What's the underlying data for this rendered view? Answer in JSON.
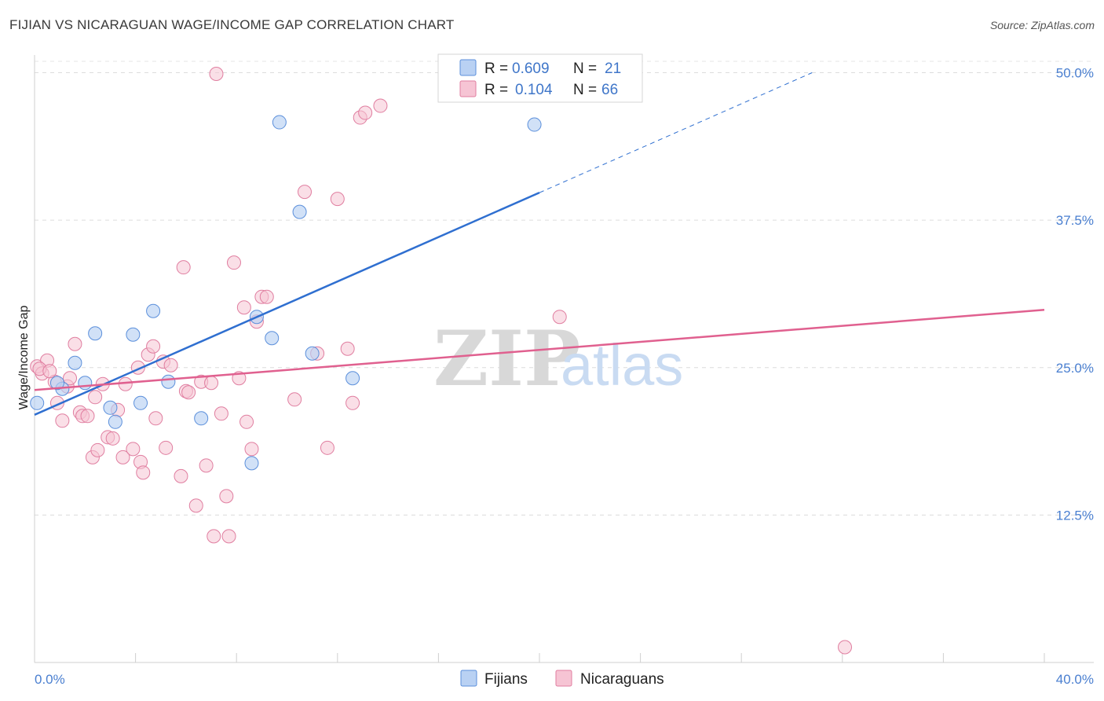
{
  "header": {
    "title": "FIJIAN VS NICARAGUAN WAGE/INCOME GAP CORRELATION CHART",
    "source": "Source: ZipAtlas.com"
  },
  "watermark": {
    "zip": "ZIP",
    "atlas": "atlas"
  },
  "chart_data": {
    "type": "scatter",
    "title": "FIJIAN VS NICARAGUAN WAGE/INCOME GAP CORRELATION CHART",
    "xlabel": "",
    "ylabel": "Wage/Income Gap",
    "xlim": [
      0,
      40
    ],
    "ylim": [
      0,
      51.5
    ],
    "x_tick_labels": {
      "min": "0.0%",
      "max": "40.0%"
    },
    "y_ticks": [
      12.5,
      25.0,
      37.5,
      50.0
    ],
    "y_tick_labels": [
      "12.5%",
      "25.0%",
      "37.5%",
      "50.0%"
    ],
    "grid": true,
    "legend_position": "top-center",
    "colors": {
      "fijians_fill": "#b9d1f3",
      "fijians_stroke": "#5b8fdb",
      "fijians_line": "#2f6fd0",
      "nicaraguans_fill": "#f6c4d4",
      "nicaraguans_stroke": "#e07ea0",
      "nicaraguans_line": "#e0608f"
    },
    "legend": {
      "r_label": "R =",
      "n_label": "N =",
      "fijians": {
        "r": "0.609",
        "n": "21"
      },
      "nicaraguans": {
        "r": "0.104",
        "n": "66"
      }
    },
    "series": [
      {
        "name": "Fijians",
        "trend": {
          "x_start": 0,
          "y_start": 21.0,
          "x_solid_end": 20,
          "x_end": 30.8,
          "y_end": 50.0
        },
        "points": [
          [
            0.1,
            22.0
          ],
          [
            1.6,
            25.4
          ],
          [
            2.0,
            23.7
          ],
          [
            1.1,
            23.2
          ],
          [
            2.4,
            27.9
          ],
          [
            3.0,
            21.6
          ],
          [
            3.2,
            20.4
          ],
          [
            3.9,
            27.8
          ],
          [
            4.2,
            22.0
          ],
          [
            4.7,
            29.8
          ],
          [
            5.3,
            23.8
          ],
          [
            6.6,
            20.7
          ],
          [
            8.6,
            16.9
          ],
          [
            8.8,
            29.3
          ],
          [
            9.4,
            27.5
          ],
          [
            9.7,
            45.8
          ],
          [
            10.5,
            38.2
          ],
          [
            11.0,
            26.2
          ],
          [
            12.6,
            24.1
          ],
          [
            19.8,
            45.6
          ],
          [
            0.9,
            23.7
          ]
        ]
      },
      {
        "name": "Nicaraguans",
        "trend": {
          "x_start": 0,
          "y_start": 23.1,
          "x_end": 40,
          "y_end": 29.9
        },
        "points": [
          [
            0.1,
            25.1
          ],
          [
            0.3,
            24.5
          ],
          [
            0.5,
            25.6
          ],
          [
            0.8,
            23.8
          ],
          [
            0.9,
            22.0
          ],
          [
            1.1,
            20.5
          ],
          [
            1.3,
            23.4
          ],
          [
            1.4,
            24.1
          ],
          [
            1.6,
            27.0
          ],
          [
            1.8,
            21.2
          ],
          [
            1.9,
            20.9
          ],
          [
            2.1,
            20.9
          ],
          [
            2.3,
            17.4
          ],
          [
            2.4,
            22.5
          ],
          [
            2.5,
            18.0
          ],
          [
            2.7,
            23.6
          ],
          [
            2.9,
            19.1
          ],
          [
            3.1,
            19.0
          ],
          [
            3.3,
            21.4
          ],
          [
            3.5,
            17.4
          ],
          [
            3.6,
            23.6
          ],
          [
            3.9,
            18.1
          ],
          [
            4.1,
            25.0
          ],
          [
            4.2,
            17.0
          ],
          [
            4.3,
            16.1
          ],
          [
            4.5,
            26.1
          ],
          [
            4.7,
            26.8
          ],
          [
            4.8,
            20.7
          ],
          [
            5.1,
            25.5
          ],
          [
            5.2,
            18.2
          ],
          [
            5.4,
            25.2
          ],
          [
            5.8,
            15.8
          ],
          [
            5.9,
            33.5
          ],
          [
            6.0,
            23.0
          ],
          [
            6.1,
            22.9
          ],
          [
            6.4,
            13.3
          ],
          [
            6.6,
            23.8
          ],
          [
            6.8,
            16.7
          ],
          [
            7.0,
            23.7
          ],
          [
            7.1,
            10.7
          ],
          [
            7.2,
            49.9
          ],
          [
            7.4,
            21.1
          ],
          [
            7.6,
            14.1
          ],
          [
            7.7,
            10.7
          ],
          [
            7.9,
            33.9
          ],
          [
            8.1,
            24.1
          ],
          [
            8.3,
            30.1
          ],
          [
            8.4,
            20.4
          ],
          [
            8.6,
            18.1
          ],
          [
            8.8,
            28.9
          ],
          [
            9.0,
            31.0
          ],
          [
            9.2,
            31.0
          ],
          [
            10.3,
            22.3
          ],
          [
            10.7,
            39.9
          ],
          [
            11.2,
            26.2
          ],
          [
            11.6,
            18.2
          ],
          [
            12.0,
            39.3
          ],
          [
            12.6,
            22.0
          ],
          [
            12.4,
            26.6
          ],
          [
            12.9,
            46.2
          ],
          [
            13.1,
            46.6
          ],
          [
            13.7,
            47.2
          ],
          [
            20.8,
            29.3
          ],
          [
            32.1,
            1.3
          ],
          [
            0.2,
            24.9
          ],
          [
            0.6,
            24.7
          ]
        ]
      }
    ]
  }
}
